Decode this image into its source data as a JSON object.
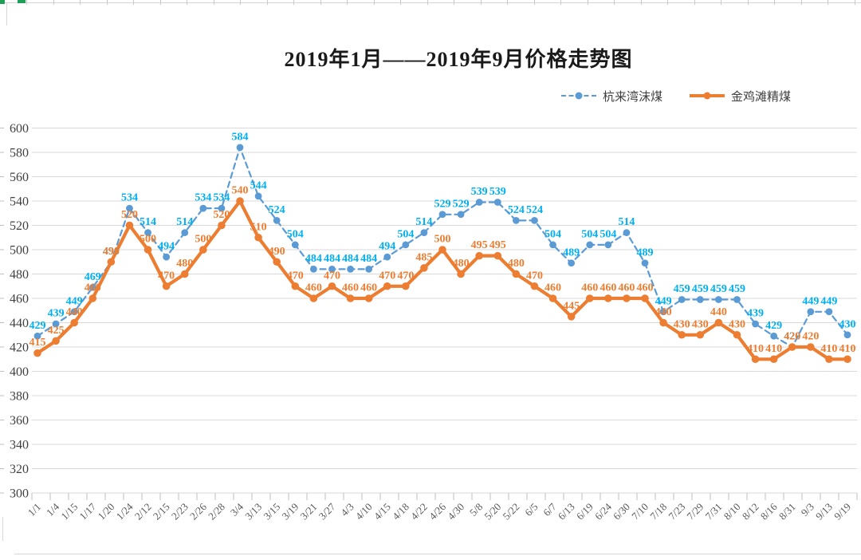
{
  "chart_data": {
    "type": "line",
    "title": "2019年1月——2019年9月价格走势图",
    "categories": [
      "1/1",
      "1/4",
      "1/15",
      "1/17",
      "1/20",
      "1/24",
      "2/12",
      "2/15",
      "2/23",
      "2/26",
      "2/28",
      "3/4",
      "3/13",
      "3/15",
      "3/19",
      "3/21",
      "3/27",
      "4/3",
      "4/10",
      "4/15",
      "4/18",
      "4/22",
      "4/26",
      "4/30",
      "5/8",
      "5/20",
      "5/22",
      "6/5",
      "6/7",
      "6/13",
      "6/19",
      "6/24",
      "6/30",
      "7/10",
      "7/18",
      "7/23",
      "7/29",
      "7/31",
      "8/10",
      "8/12",
      "8/16",
      "8/31",
      "9/3",
      "9/13",
      "9/19"
    ],
    "series": [
      {
        "name": "杭来湾沫煤",
        "values": [
          429,
          439,
          449,
          469,
          490,
          534,
          514,
          494,
          514,
          534,
          534,
          584,
          544,
          524,
          504,
          484,
          484,
          484,
          484,
          494,
          504,
          514,
          529,
          529,
          539,
          539,
          524,
          524,
          504,
          489,
          504,
          504,
          514,
          489,
          449,
          459,
          459,
          459,
          459,
          439,
          429,
          420,
          449,
          449,
          430
        ],
        "color": "#5B9BD5",
        "label_color": "#00B0F0",
        "line_style": "dashed"
      },
      {
        "name": "金鸡滩精煤",
        "values": [
          415,
          425,
          440,
          460,
          490,
          520,
          500,
          470,
          480,
          500,
          520,
          540,
          510,
          490,
          470,
          460,
          470,
          460,
          460,
          470,
          470,
          485,
          500,
          480,
          495,
          495,
          480,
          470,
          460,
          445,
          460,
          460,
          460,
          460,
          440,
          430,
          430,
          440,
          430,
          410,
          410,
          420,
          420,
          410,
          410
        ],
        "color": "#ED7D31",
        "label_color": "#ED7D31",
        "line_style": "solid"
      }
    ],
    "ylim": [
      300,
      600
    ],
    "yticks": [
      600,
      580,
      560,
      540,
      520,
      500,
      480,
      460,
      440,
      420,
      400,
      380,
      360,
      340,
      320,
      300
    ],
    "grid": true,
    "data_labels": true,
    "legend_position": "top-right",
    "xlabel": "",
    "ylabel": ""
  },
  "colors": {
    "gridline": "#d9d9d9",
    "tick": "#bfbfbf",
    "axis_text": "#404040",
    "sheet_line": "#d6d6d6",
    "sheet_accent_green": "#1e9e57"
  }
}
